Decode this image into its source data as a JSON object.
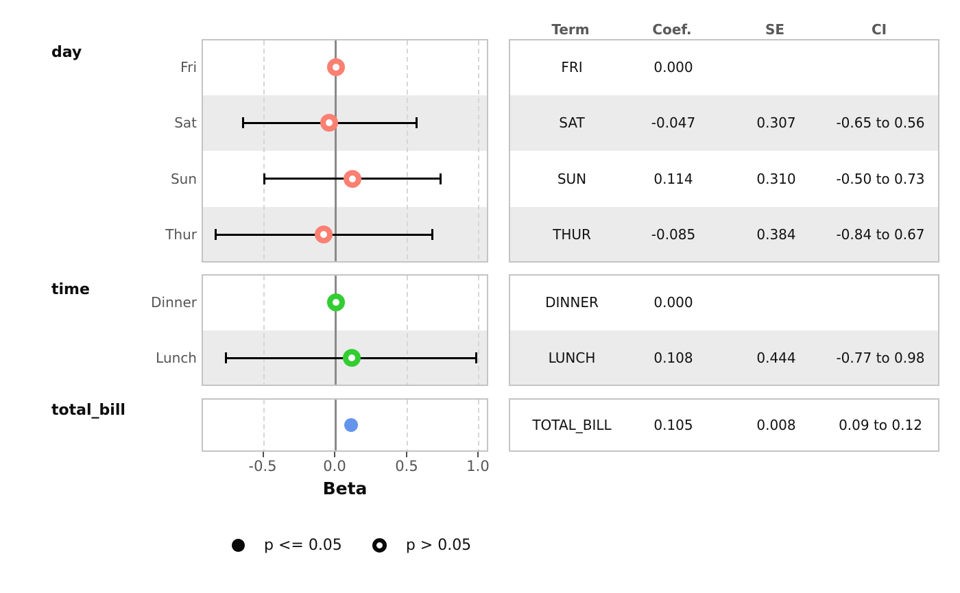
{
  "chart_data": {
    "type": "scatter",
    "subtype": "forest-plot-with-table",
    "title": "",
    "xlabel": "Beta",
    "xlim": [
      -0.93,
      1.07
    ],
    "xticks": [
      -0.5,
      0.0,
      0.5,
      1.0
    ],
    "xtick_labels": [
      "-0.5",
      "0.0",
      "0.5",
      "1.0"
    ],
    "grid": "vertical dashed lines at ticks, solid gray line at 0",
    "legend_position": "bottom",
    "row_striping": [
      "#ffffff",
      "#ebebeb"
    ],
    "groups": [
      {
        "name": "day",
        "color": "#fa8072",
        "rows": [
          {
            "label": "Fri",
            "term": "FRI",
            "coef": "0.000",
            "se": "",
            "ci": "",
            "estimate": 0.0,
            "ci_low": null,
            "ci_high": null,
            "significant": false
          },
          {
            "label": "Sat",
            "term": "SAT",
            "coef": "-0.047",
            "se": "0.307",
            "ci": "-0.65 to 0.56",
            "estimate": -0.047,
            "ci_low": -0.65,
            "ci_high": 0.56,
            "significant": false
          },
          {
            "label": "Sun",
            "term": "SUN",
            "coef": "0.114",
            "se": "0.310",
            "ci": "-0.50 to 0.73",
            "estimate": 0.114,
            "ci_low": -0.5,
            "ci_high": 0.73,
            "significant": false
          },
          {
            "label": "Thur",
            "term": "THUR",
            "coef": "-0.085",
            "se": "0.384",
            "ci": "-0.84 to 0.67",
            "estimate": -0.085,
            "ci_low": -0.84,
            "ci_high": 0.67,
            "significant": false
          }
        ]
      },
      {
        "name": "time",
        "color": "#32cd32",
        "rows": [
          {
            "label": "Dinner",
            "term": "DINNER",
            "coef": "0.000",
            "se": "",
            "ci": "",
            "estimate": 0.0,
            "ci_low": null,
            "ci_high": null,
            "significant": false
          },
          {
            "label": "Lunch",
            "term": "LUNCH",
            "coef": "0.108",
            "se": "0.444",
            "ci": "-0.77 to 0.98",
            "estimate": 0.108,
            "ci_low": -0.77,
            "ci_high": 0.98,
            "significant": false
          }
        ]
      },
      {
        "name": "total_bill",
        "color": "#6495ed",
        "rows": [
          {
            "label": "",
            "term": "TOTAL_BILL",
            "coef": "0.105",
            "se": "0.008",
            "ci": "0.09 to 0.12",
            "estimate": 0.105,
            "ci_low": 0.09,
            "ci_high": 0.12,
            "significant": true
          }
        ]
      }
    ]
  },
  "table": {
    "headers": [
      "Term",
      "Coef.",
      "SE",
      "CI"
    ]
  },
  "legend": {
    "items": [
      {
        "marker": "filled-circle",
        "label": "p <= 0.05"
      },
      {
        "marker": "open-circle",
        "label": "p > 0.05"
      }
    ]
  },
  "colors": {
    "day_marker": "#fa8072",
    "time_marker": "#32cd32",
    "total_bill_marker": "#6495ed",
    "stripe": "#ebebeb",
    "panel_border": "#c4c4c4",
    "zero_line": "#8a8a8a",
    "dashed_grid": "#d6d6d6",
    "errorbar": "#000000",
    "muted_text": "#555555",
    "header_text": "#595959"
  }
}
